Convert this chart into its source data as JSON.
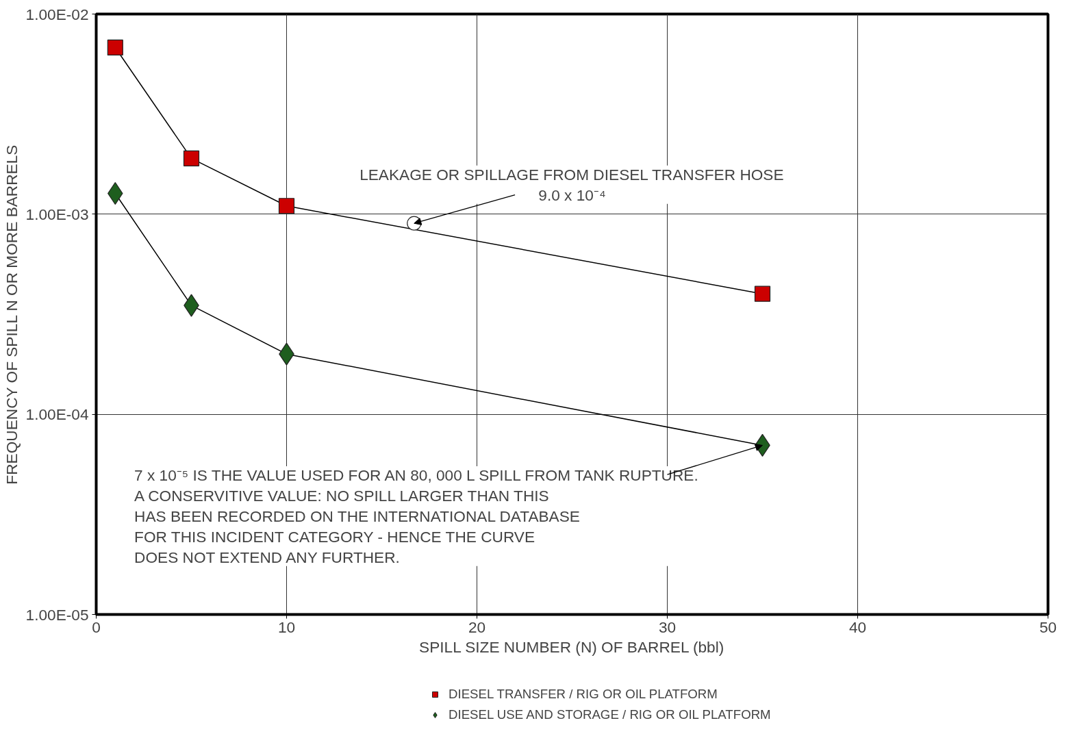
{
  "chart_data": {
    "type": "line",
    "xlabel": "SPILL SIZE NUMBER (N) OF BARREL (bbl)",
    "ylabel": "FREQUENCY OF SPILL N OR MORE BARRELS",
    "log": "y",
    "grid": true,
    "legend": "bottom",
    "line_style": "solid",
    "xlim": [
      0,
      50
    ],
    "xticks": [
      0,
      10,
      20,
      30,
      40,
      50
    ],
    "ylim": [
      1e-05,
      0.01
    ],
    "yticks": [
      {
        "value": 1e-05,
        "label": "1.00E-05"
      },
      {
        "value": 0.0001,
        "label": "1.00E-04"
      },
      {
        "value": 0.001,
        "label": "1.00E-03"
      },
      {
        "value": 0.01,
        "label": "1.00E-02"
      }
    ],
    "series": [
      {
        "name": "DIESEL TRANSFER / RIG OR OIL PLATFORM",
        "marker": "square",
        "color": "#cc0000",
        "x": [
          1,
          5,
          10,
          35
        ],
        "values": [
          0.0068,
          0.0019,
          0.0011,
          0.0004
        ]
      },
      {
        "name": "DIESEL USE AND STORAGE / RIG OR OIL PLATFORM",
        "marker": "diamond",
        "color": "#1e5e1e",
        "x": [
          1,
          5,
          10,
          35
        ],
        "values": [
          0.00127,
          0.00035,
          0.0002,
          7e-05
        ]
      },
      {
        "type": "scatter",
        "marker": "circle",
        "color": "#ffffff",
        "x": [
          16.7
        ],
        "values": [
          0.0009
        ]
      }
    ],
    "annotations": [
      {
        "text": "LEAKAGE OR SPILLAGE FROM DIESEL TRANSFER HOSE\n9.0 x 10⁻⁴",
        "x": 16.7,
        "y": 0.0009
      },
      {
        "text": "7 x 10⁻⁵  IS THE VALUE USED FOR AN 80, 000 L SPILL FROM TANK RUPTURE.\nA CONSERVITIVE VALUE: NO SPILL LARGER THAN THIS\nHAS BEEN RECORDED ON THE INTERNATIONAL DATABASE\nFOR THIS INCIDENT CATEGORY - HENCE THE CURVE\nDOES NOT EXTEND ANY FURTHER.",
        "x": 35,
        "y": 7e-05
      }
    ]
  }
}
